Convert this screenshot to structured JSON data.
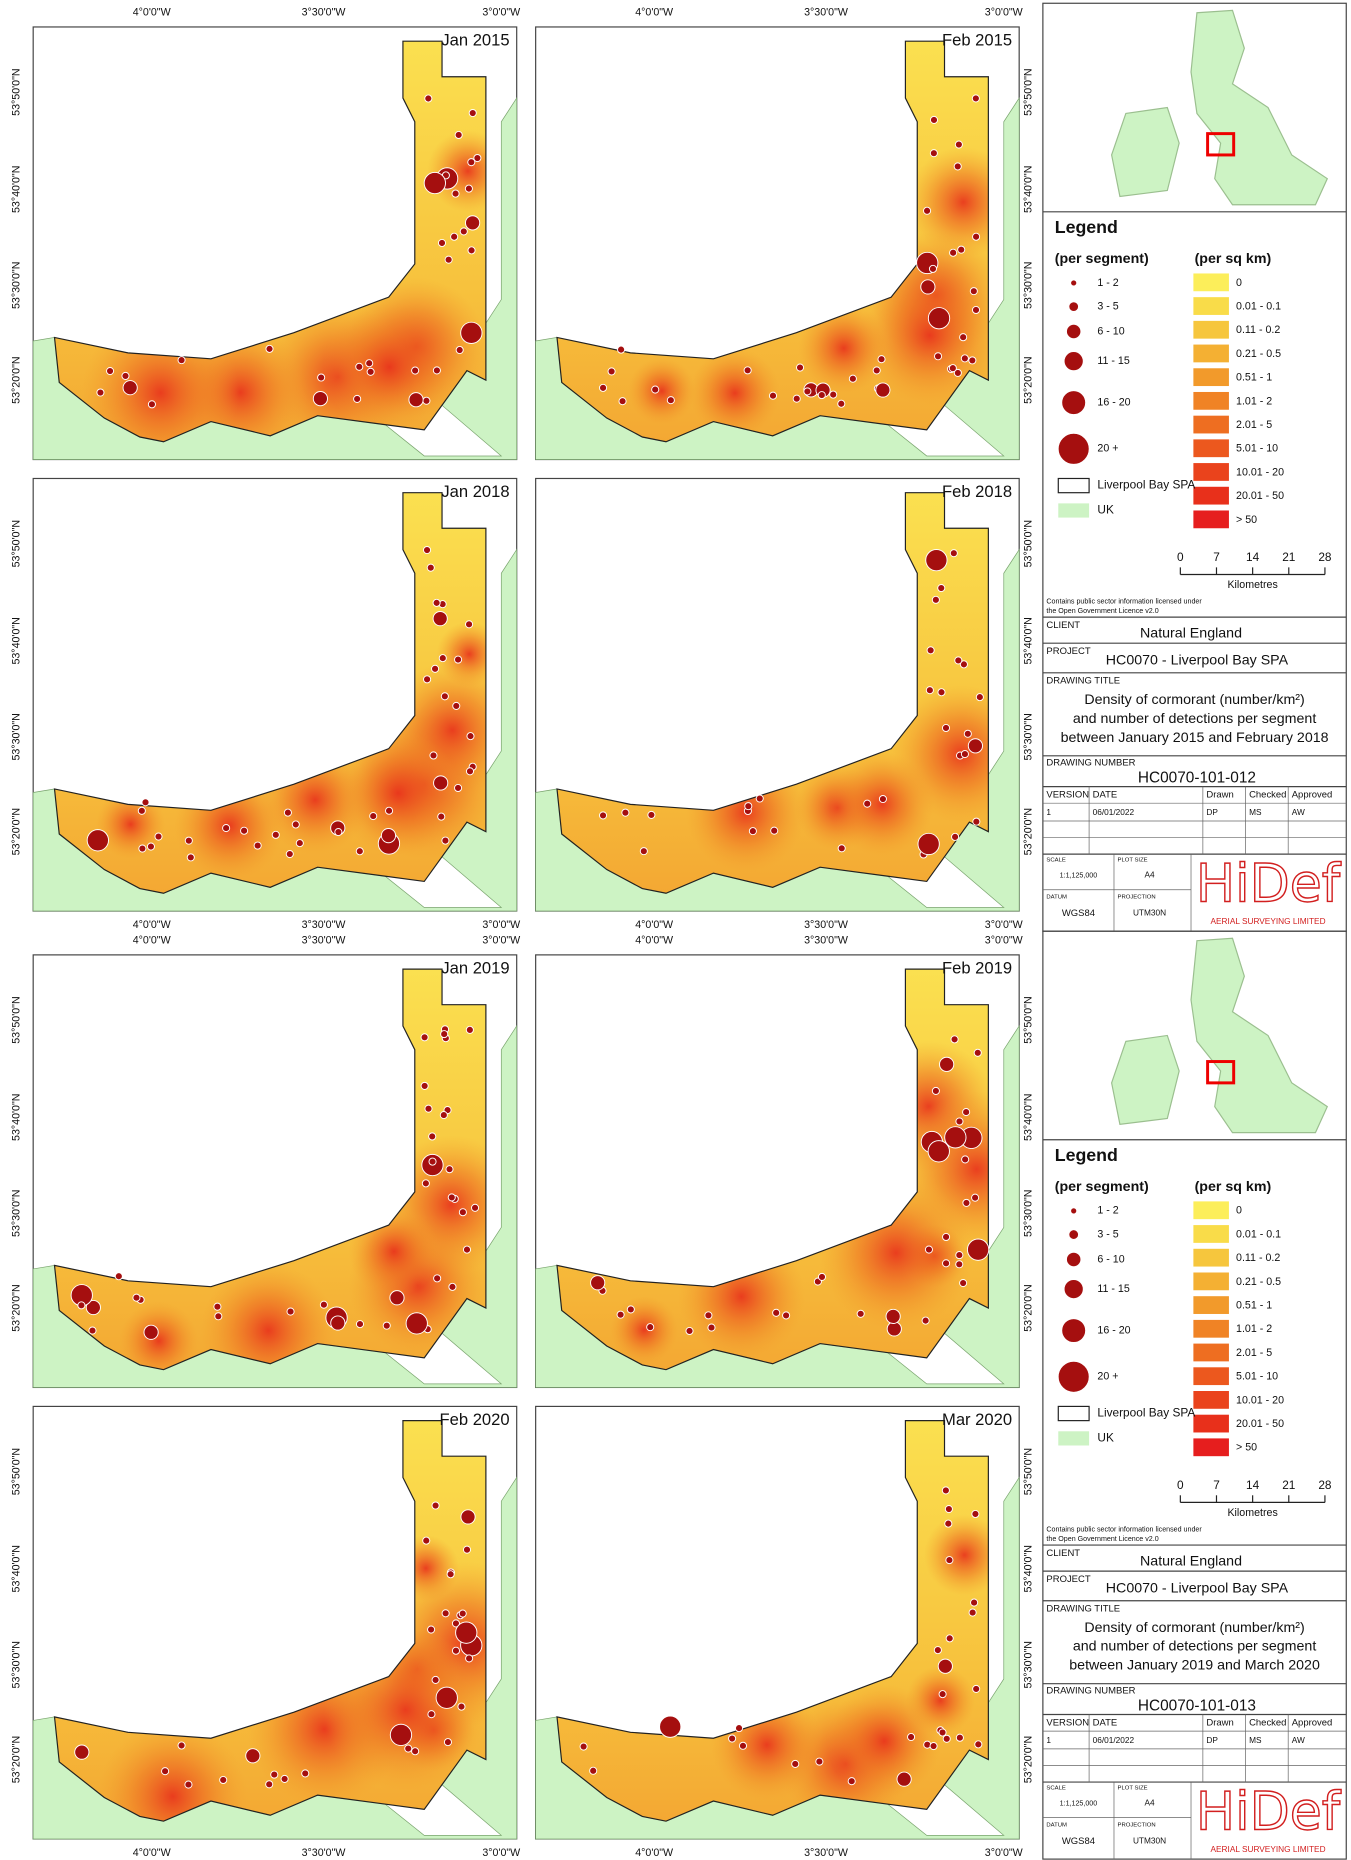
{
  "axis_labels": {
    "lon": [
      "4°0'0\"W",
      "3°30'0\"W",
      "3°0'0\"W"
    ],
    "lat": [
      "53°50'0\"N",
      "53°40'0\"N",
      "53°30'0\"N",
      "53°20'0\"N"
    ]
  },
  "sheets": [
    {
      "panels": [
        "Jan 2015",
        "Feb 2015",
        "Jan 2018",
        "Feb 2018"
      ],
      "drawing_title": [
        "Density of cormorant (number/km²)",
        "and number of detections per segment",
        "between January 2015 and February 2018"
      ],
      "drawing_number": "HC0070-101-012"
    },
    {
      "panels": [
        "Jan 2019",
        "Feb 2019",
        "Feb 2020",
        "Mar 2020"
      ],
      "drawing_title": [
        "Density of cormorant (number/km²)",
        "and number of detections per segment",
        "between January 2019 and March 2020"
      ],
      "drawing_number": "HC0070-101-013"
    }
  ],
  "legend": {
    "title": "Legend",
    "segment_heading": "(per segment)",
    "density_heading": "(per sq km)",
    "segment_classes": [
      "1 - 2",
      "3 - 5",
      "6 - 10",
      "11 - 15",
      "16 - 20",
      "20 +"
    ],
    "density_classes": [
      "0",
      "0.01 - 0.1",
      "0.11 - 0.2",
      "0.21 - 0.5",
      "0.51 - 1",
      "1.01 - 2",
      "2.01 - 5",
      "5.01 - 10",
      "10.01 - 20",
      "20.01 - 50",
      "> 50"
    ],
    "density_colors": [
      "#fcee5a",
      "#f9dc49",
      "#f6c63d",
      "#f4b033",
      "#f29a2b",
      "#f08325",
      "#ee6e21",
      "#ec581e",
      "#ea431c",
      "#e8301b",
      "#e61e1e"
    ],
    "spa_label": "Liverpool Bay SPA",
    "uk_label": "UK",
    "scale_ticks": [
      0,
      7,
      14,
      21,
      28
    ],
    "scale_unit": "Kilometres"
  },
  "title_block": {
    "licence": [
      "Contains public sector information licensed under",
      "the Open Government Licence v2.0"
    ],
    "client_label": "CLIENT",
    "client": "Natural England",
    "project_label": "PROJECT",
    "project": "HC0070 - Liverpool Bay SPA",
    "drawing_title_label": "DRAWING TITLE",
    "drawing_number_label": "DRAWING NUMBER",
    "table_headers": [
      "VERSION",
      "DATE",
      "Drawn",
      "Checked",
      "Approved"
    ],
    "table_row": [
      "1",
      "06/01/2022",
      "DP",
      "MS",
      "AW"
    ],
    "scale_label": "SCALE",
    "scale": "1:1,125,000",
    "plot_size_label": "PLOT SIZE",
    "plot_size": "A4",
    "datum_label": "DATUM",
    "datum": "WGS84",
    "projection_label": "PROJECTION",
    "projection": "UTM30N",
    "logo": "HiDef",
    "logo_sub": "AERIAL SURVEYING LIMITED"
  }
}
